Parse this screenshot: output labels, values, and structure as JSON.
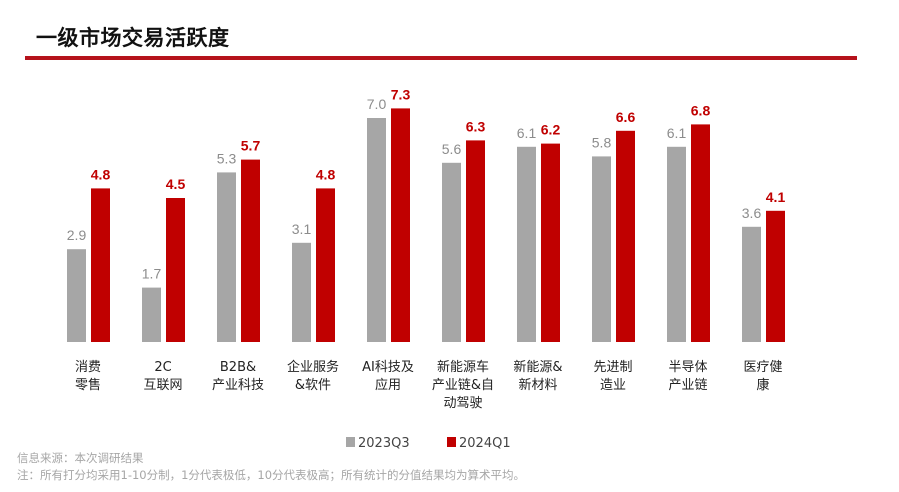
{
  "title": "一级市场交易活跃度",
  "chart_data": {
    "type": "bar",
    "categories": [
      [
        "消费",
        "零售"
      ],
      [
        "2C",
        "互联网"
      ],
      [
        "B2B&",
        "产业科技"
      ],
      [
        "企业服务",
        "&软件"
      ],
      [
        "AI科技及",
        "应用"
      ],
      [
        "新能源车",
        "产业链&自",
        "动驾驶"
      ],
      [
        "新能源&",
        "新材料"
      ],
      [
        "先进制",
        "造业"
      ],
      [
        "半导体",
        "产业链"
      ],
      [
        "医疗健",
        "康"
      ]
    ],
    "series": [
      {
        "name": "2023Q3",
        "color": "#a6a6a6",
        "values": [
          2.9,
          1.7,
          5.3,
          3.1,
          7.0,
          5.6,
          6.1,
          5.8,
          6.1,
          3.6
        ]
      },
      {
        "name": "2024Q1",
        "color": "#c00000",
        "values": [
          4.8,
          4.5,
          5.7,
          4.8,
          7.3,
          6.3,
          6.2,
          6.6,
          6.8,
          4.1
        ]
      }
    ],
    "ylim": [
      0,
      8
    ],
    "grid": false,
    "legend": "bottom",
    "data_labels": true
  },
  "footer": {
    "source": "信息来源：本次调研结果",
    "note": "注：所有打分均采用1-10分制，1分代表极低，10分代表极高；所有统计的分值结果均为算术平均。"
  }
}
